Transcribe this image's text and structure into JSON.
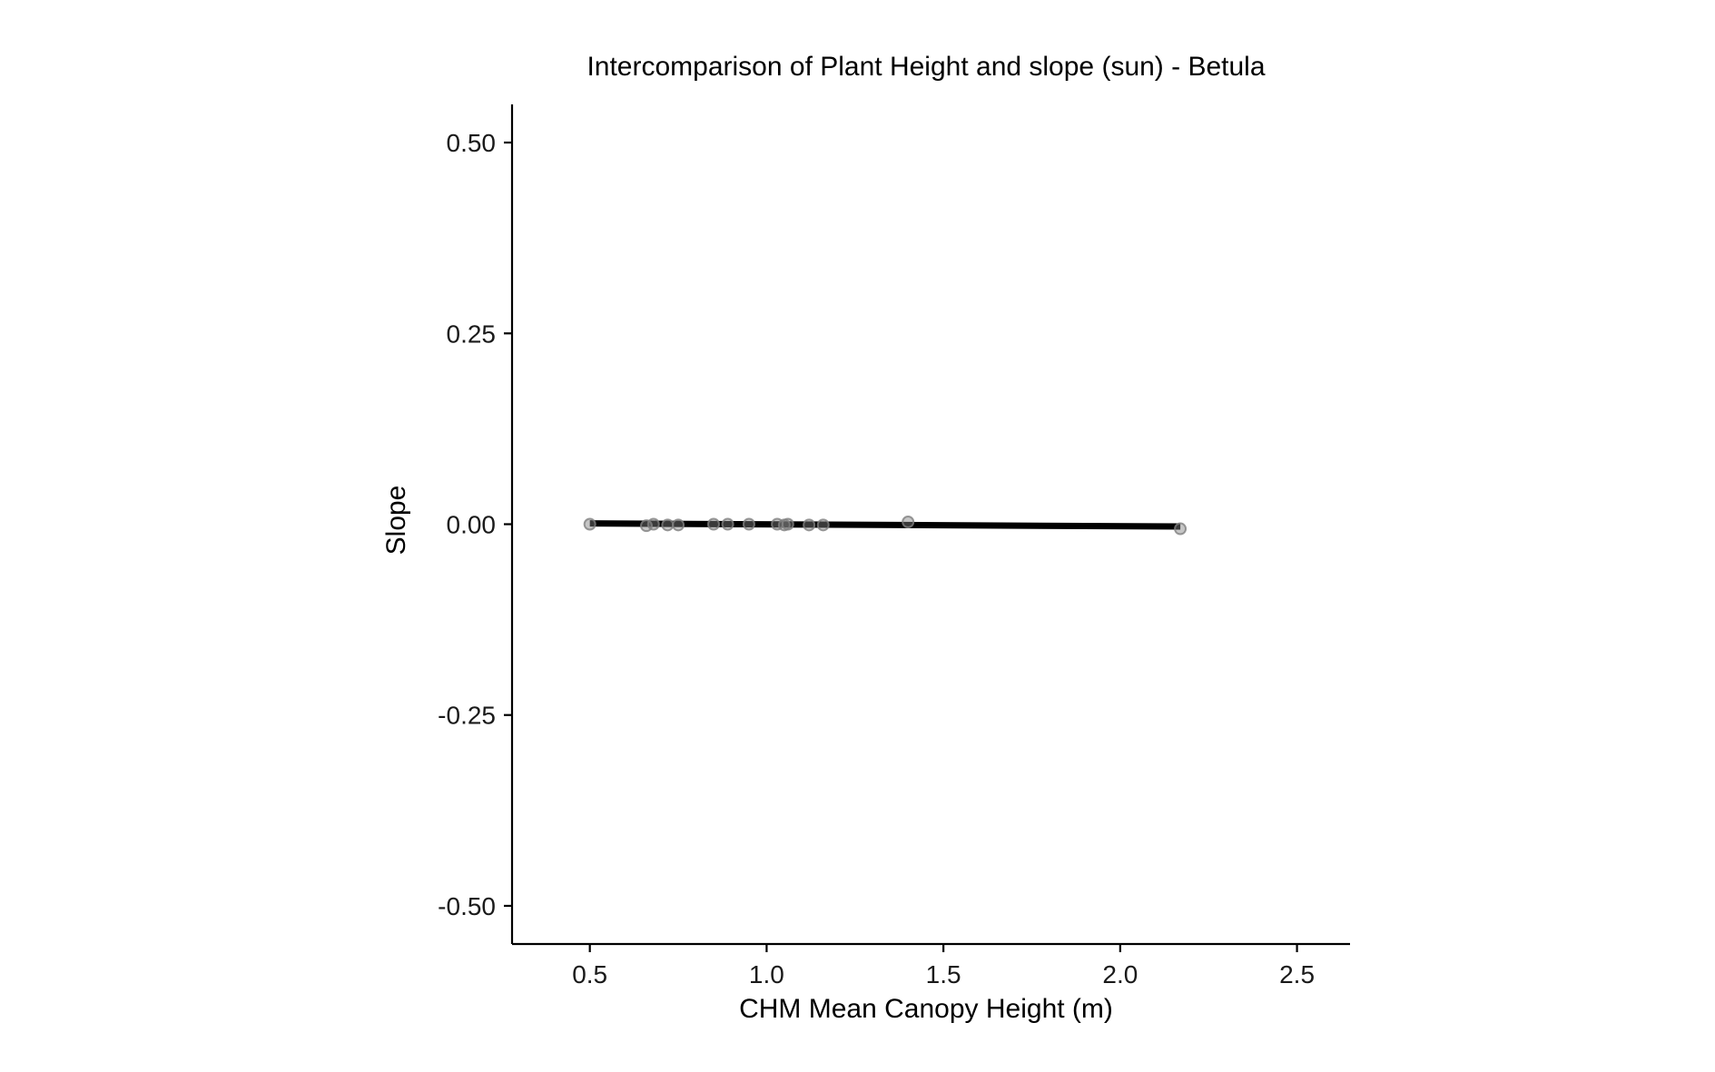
{
  "chart_data": {
    "type": "scatter",
    "title": "Intercomparison of Plant Height and slope (sun) - Betula",
    "xlabel": "CHM Mean Canopy Height (m)",
    "ylabel": "Slope",
    "xlim": [
      0.28,
      2.65
    ],
    "ylim": [
      -0.55,
      0.55
    ],
    "x_ticks": [
      0.5,
      1.0,
      1.5,
      2.0,
      2.5
    ],
    "x_tick_labels": [
      "0.5",
      "1.0",
      "1.5",
      "2.0",
      "2.5"
    ],
    "y_ticks": [
      0.5,
      0.25,
      0.0,
      -0.25,
      -0.5
    ],
    "y_tick_labels": [
      "0.50",
      "0.25",
      "0.00",
      "-0.25",
      "-0.50"
    ],
    "grid": false,
    "legend": "none",
    "series": [
      {
        "points": [
          {
            "x": 0.5,
            "y": 0.0
          },
          {
            "x": 0.66,
            "y": -0.002
          },
          {
            "x": 0.68,
            "y": 0.0
          },
          {
            "x": 0.72,
            "y": -0.001
          },
          {
            "x": 0.75,
            "y": -0.001
          },
          {
            "x": 0.85,
            "y": 0.0
          },
          {
            "x": 0.89,
            "y": 0.0
          },
          {
            "x": 0.95,
            "y": 0.0
          },
          {
            "x": 1.03,
            "y": 0.0
          },
          {
            "x": 1.05,
            "y": -0.001
          },
          {
            "x": 1.06,
            "y": 0.0
          },
          {
            "x": 1.12,
            "y": -0.001
          },
          {
            "x": 1.16,
            "y": -0.001
          },
          {
            "x": 1.4,
            "y": 0.003
          },
          {
            "x": 2.17,
            "y": -0.006
          }
        ]
      }
    ],
    "fit_line": {
      "x": [
        0.5,
        2.17
      ],
      "y": [
        0.001,
        -0.003
      ]
    },
    "colors": {
      "points": "#808080",
      "fit_line": "#000000",
      "axis": "#000000"
    }
  }
}
